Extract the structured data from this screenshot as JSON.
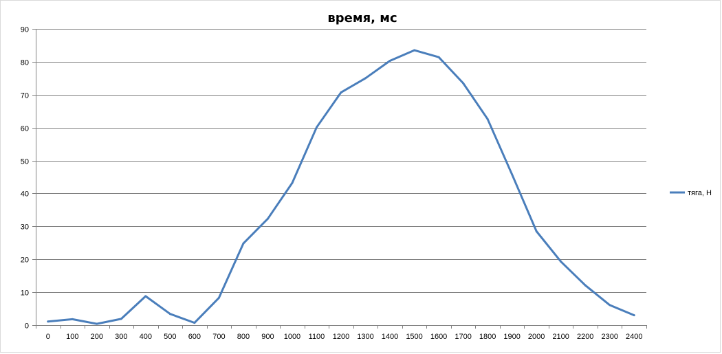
{
  "chart_data": {
    "type": "line",
    "title": "время, мс",
    "xlabel": "",
    "ylabel": "",
    "categories": [
      "0",
      "100",
      "200",
      "300",
      "400",
      "500",
      "600",
      "700",
      "800",
      "900",
      "1000",
      "1100",
      "1200",
      "1300",
      "1400",
      "1500",
      "1600",
      "1700",
      "1800",
      "1900",
      "2000",
      "2100",
      "2200",
      "2300",
      "2400"
    ],
    "series": [
      {
        "name": "тяга, Н",
        "values": [
          1.1,
          1.8,
          0.4,
          1.9,
          8.8,
          3.4,
          0.7,
          8.3,
          24.8,
          32.3,
          43.2,
          60.1,
          70.7,
          75.0,
          80.3,
          83.5,
          81.4,
          73.5,
          62.6,
          45.8,
          28.5,
          19.3,
          12.1,
          6.1,
          3.0
        ]
      }
    ],
    "ylim": [
      0,
      90
    ],
    "y_ticks": [
      "0",
      "10",
      "20",
      "30",
      "40",
      "50",
      "60",
      "70",
      "80",
      "90"
    ],
    "grid": true,
    "legend_position": "right",
    "colors": {
      "series": "#4a7ebb",
      "grid": "#808080",
      "axis": "#808080"
    }
  }
}
